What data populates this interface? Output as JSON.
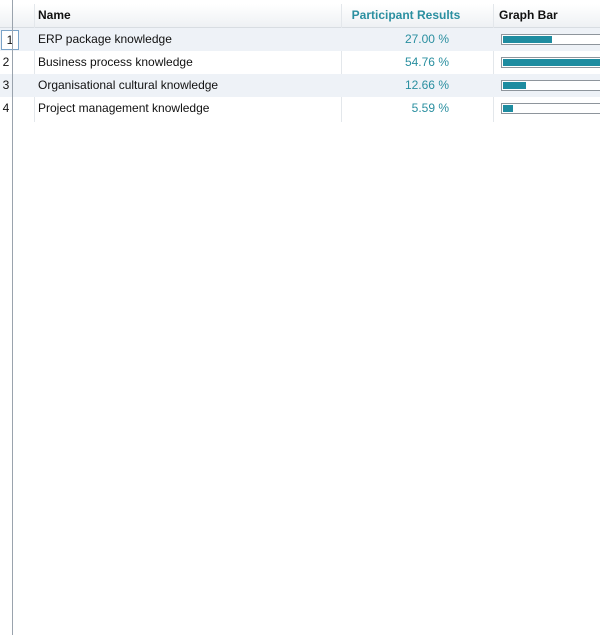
{
  "table": {
    "columns": [
      "Name",
      "Participant Results",
      "Graph Bar"
    ],
    "rows": [
      {
        "index": 1,
        "name": "ERP package knowledge",
        "value": 27.0,
        "value_label": "27.00 %"
      },
      {
        "index": 2,
        "name": "Business process knowledge",
        "value": 54.76,
        "value_label": "54.76 %"
      },
      {
        "index": 3,
        "name": "Organisational cultural knowledge",
        "value": 12.66,
        "value_label": "12.66 %"
      },
      {
        "index": 4,
        "name": "Project management knowledge",
        "value": 5.59,
        "value_label": "5.59 %"
      }
    ]
  }
}
